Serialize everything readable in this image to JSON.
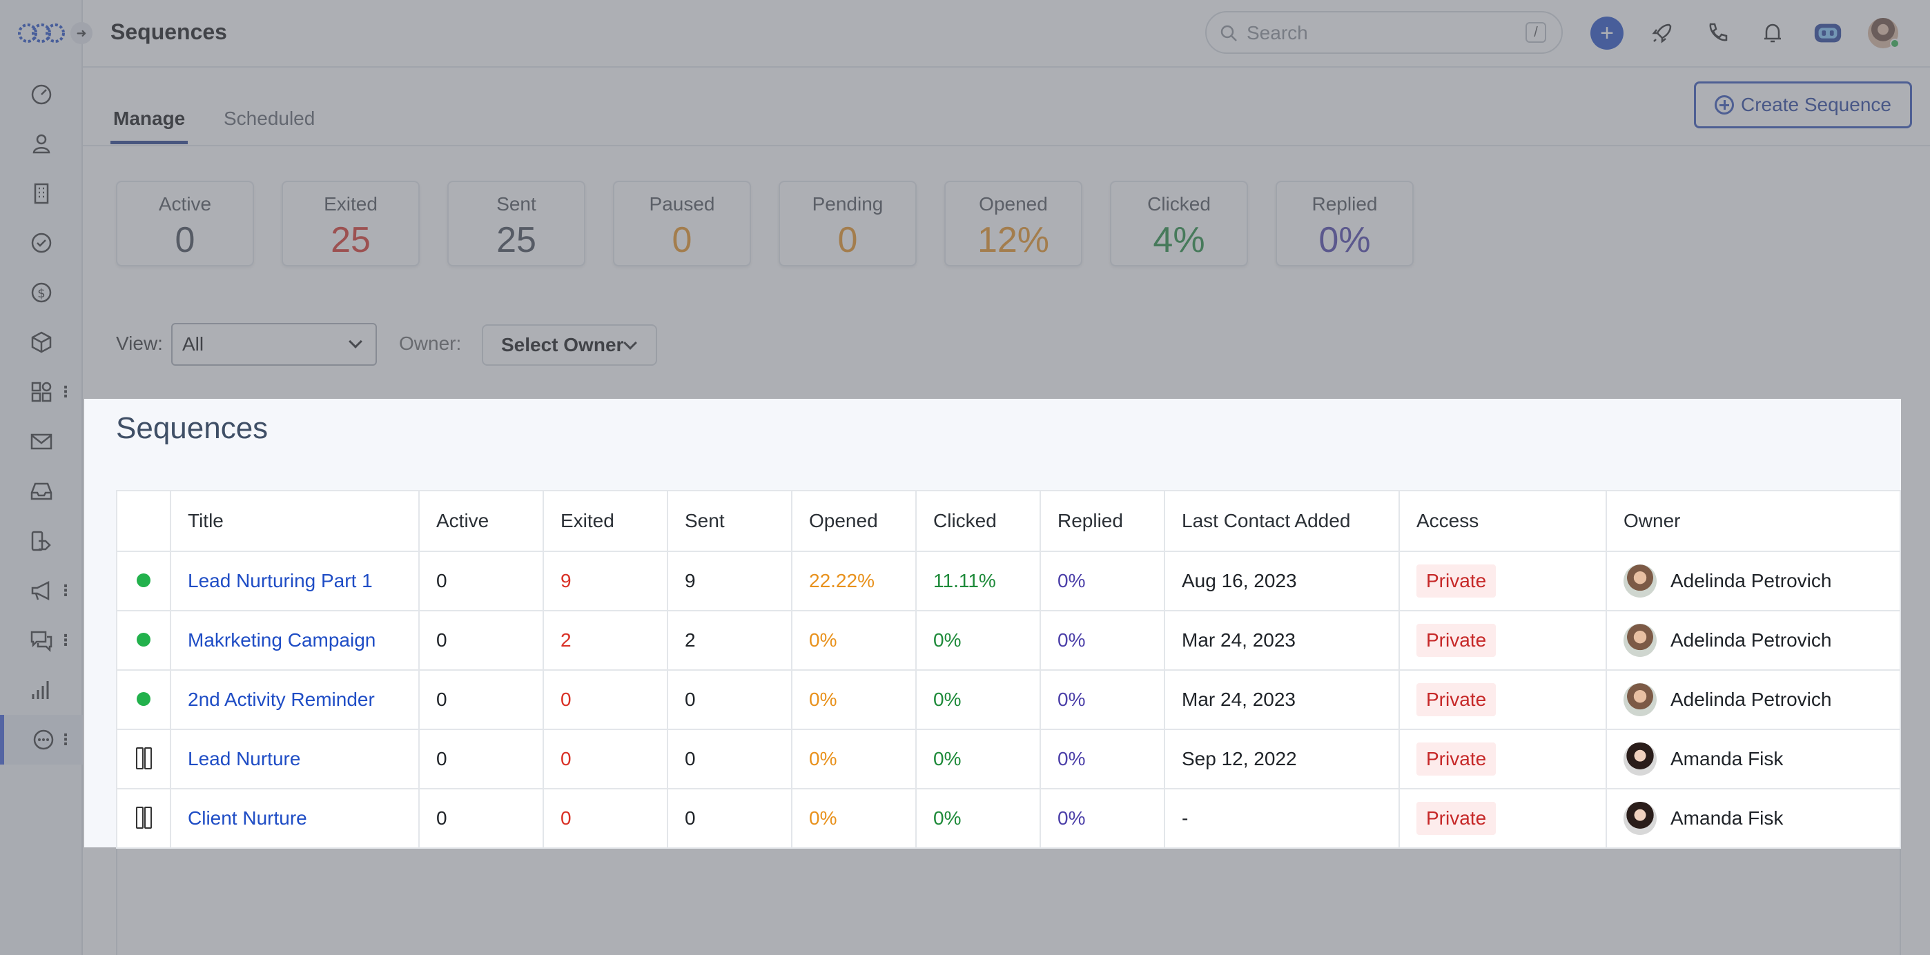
{
  "header": {
    "title": "Sequences",
    "search_placeholder": "Search",
    "search_shortcut": "/"
  },
  "tabs": [
    {
      "label": "Manage",
      "active": true
    },
    {
      "label": "Scheduled",
      "active": false
    }
  ],
  "create_button": "Create Sequence",
  "stats": [
    {
      "label": "Active",
      "value": "0",
      "color": "#3e4650"
    },
    {
      "label": "Exited",
      "value": "25",
      "color": "#d93025"
    },
    {
      "label": "Sent",
      "value": "25",
      "color": "#3e4650"
    },
    {
      "label": "Paused",
      "value": "0",
      "color": "#e8911c"
    },
    {
      "label": "Pending",
      "value": "0",
      "color": "#e8911c"
    },
    {
      "label": "Opened",
      "value": "12%",
      "color": "#e8911c"
    },
    {
      "label": "Clicked",
      "value": "4%",
      "color": "#1e8a3a"
    },
    {
      "label": "Replied",
      "value": "0%",
      "color": "#4b3fa8"
    }
  ],
  "filters": {
    "view_label": "View:",
    "view_value": "All",
    "owner_label": "Owner:",
    "owner_value": "Select Owner"
  },
  "panel": {
    "title": "Sequences",
    "columns": [
      "",
      "Title",
      "Active",
      "Exited",
      "Sent",
      "Opened",
      "Clicked",
      "Replied",
      "Last Contact Added",
      "Access",
      "Owner"
    ],
    "rows": [
      {
        "status": "active",
        "title": "Lead Nurturing Part 1",
        "active": "0",
        "exited": "9",
        "sent": "9",
        "opened": "22.22%",
        "clicked": "11.11%",
        "replied": "0%",
        "last_contact": "Aug 16, 2023",
        "access": "Private",
        "owner": "Adelinda Petrovich"
      },
      {
        "status": "active",
        "title": "Makrketing Campaign",
        "active": "0",
        "exited": "2",
        "sent": "2",
        "opened": "0%",
        "clicked": "0%",
        "replied": "0%",
        "last_contact": "Mar 24, 2023",
        "access": "Private",
        "owner": "Adelinda Petrovich"
      },
      {
        "status": "active",
        "title": "2nd Activity Reminder",
        "active": "0",
        "exited": "0",
        "sent": "0",
        "opened": "0%",
        "clicked": "0%",
        "replied": "0%",
        "last_contact": "Mar 24, 2023",
        "access": "Private",
        "owner": "Adelinda Petrovich"
      },
      {
        "status": "paused",
        "title": "Lead Nurture",
        "active": "0",
        "exited": "0",
        "sent": "0",
        "opened": "0%",
        "clicked": "0%",
        "replied": "0%",
        "last_contact": "Sep 12, 2022",
        "access": "Private",
        "owner": "Amanda Fisk"
      },
      {
        "status": "paused",
        "title": "Client Nurture",
        "active": "0",
        "exited": "0",
        "sent": "0",
        "opened": "0%",
        "clicked": "0%",
        "replied": "0%",
        "last_contact": "-",
        "access": "Private",
        "owner": "Amanda Fisk"
      }
    ]
  },
  "sidebar_icons": [
    "dashboard-icon",
    "contacts-icon",
    "companies-icon",
    "tasks-icon",
    "deals-icon",
    "products-icon",
    "apps-icon",
    "email-icon",
    "inbox-icon",
    "workflows-icon",
    "campaigns-icon",
    "chat-icon",
    "reports-icon",
    "sequences-icon"
  ],
  "colors": {
    "accent": "#1f4dc5",
    "active_dot": "#22b14c"
  }
}
